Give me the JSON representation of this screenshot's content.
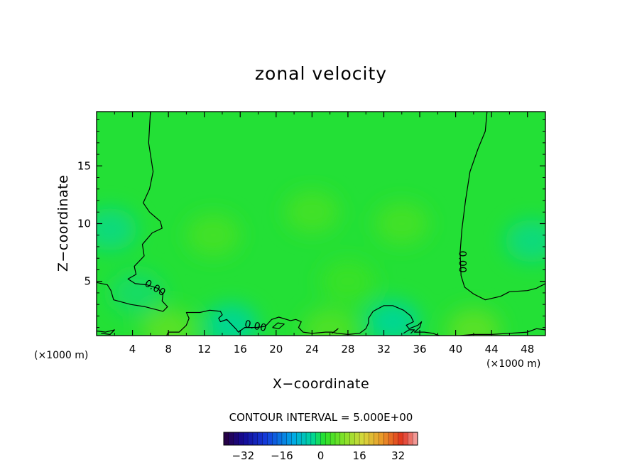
{
  "chart_data": {
    "type": "heatmap",
    "title": "zonal velocity",
    "xlabel": "X−coordinate",
    "ylabel": "Z−coordinate",
    "x_unit": "(×1000 m)",
    "y_unit": "(×1000 m)",
    "xlim": [
      0,
      50
    ],
    "ylim": [
      0.3,
      19.7
    ],
    "x_ticks": [
      4,
      8,
      12,
      16,
      20,
      24,
      28,
      32,
      36,
      40,
      44,
      48
    ],
    "y_ticks": [
      5,
      10,
      15
    ],
    "background_value": 1,
    "features": [
      {
        "x": 1.5,
        "z": 9.5,
        "value": -3
      },
      {
        "x": 48.5,
        "z": 8.5,
        "value": -3
      },
      {
        "x": 4.5,
        "z": 4.0,
        "value": -2
      },
      {
        "x": 24.0,
        "z": 11.0,
        "value": 3
      },
      {
        "x": 13.0,
        "z": 9.0,
        "value": 3
      },
      {
        "x": 34.0,
        "z": 10.0,
        "value": 3
      },
      {
        "x": 28.0,
        "z": 5.0,
        "value": 2
      },
      {
        "x": 15.0,
        "z": 1.2,
        "value": -4
      },
      {
        "x": 33.0,
        "z": 1.5,
        "value": -4
      },
      {
        "x": 26.0,
        "z": 0.8,
        "value": 4
      },
      {
        "x": 42.0,
        "z": 0.8,
        "value": 5
      },
      {
        "x": 8.0,
        "z": 0.8,
        "value": 5
      }
    ],
    "contours": [
      {
        "level": "0.00",
        "label_position": {
          "x": 6.5,
          "z": 4.4
        },
        "label_angle": 30,
        "points": [
          [
            6.0,
            19.7
          ],
          [
            5.8,
            17.0
          ],
          [
            6.3,
            14.5
          ],
          [
            5.9,
            13.0
          ],
          [
            5.2,
            11.8
          ],
          [
            5.9,
            11.0
          ],
          [
            7.1,
            10.2
          ],
          [
            7.3,
            9.6
          ],
          [
            6.2,
            9.2
          ],
          [
            5.1,
            8.2
          ],
          [
            5.3,
            7.2
          ],
          [
            4.2,
            6.3
          ],
          [
            4.4,
            5.6
          ],
          [
            3.5,
            5.2
          ],
          [
            4.3,
            4.8
          ],
          [
            5.6,
            4.7
          ],
          [
            6.8,
            4.4
          ],
          [
            7.4,
            3.9
          ],
          [
            7.3,
            3.3
          ],
          [
            7.9,
            2.8
          ],
          [
            7.4,
            2.4
          ],
          [
            5.4,
            2.8
          ],
          [
            3.8,
            3.0
          ],
          [
            1.9,
            3.4
          ],
          [
            1.6,
            4.2
          ],
          [
            1.2,
            4.7
          ],
          [
            0.0,
            4.9
          ]
        ]
      },
      {
        "level": "0.00",
        "label_position": {
          "x": 40.7,
          "z": 6.7
        },
        "label_angle": 90,
        "points": [
          [
            43.5,
            19.7
          ],
          [
            43.3,
            18.0
          ],
          [
            42.5,
            16.5
          ],
          [
            41.6,
            14.5
          ],
          [
            41.1,
            12.0
          ],
          [
            40.7,
            9.5
          ],
          [
            40.5,
            7.5
          ],
          [
            40.6,
            5.5
          ],
          [
            41.0,
            4.5
          ],
          [
            42.0,
            3.9
          ],
          [
            43.3,
            3.4
          ],
          [
            45.0,
            3.7
          ],
          [
            46.0,
            4.1
          ],
          [
            48.0,
            4.2
          ],
          [
            49.0,
            4.4
          ],
          [
            50.0,
            4.8
          ]
        ]
      },
      {
        "level": "0.00",
        "label_position": {
          "x": 17.7,
          "z": 1.1
        },
        "label_angle": 12,
        "points": [
          [
            7.8,
            0.3
          ],
          [
            8.0,
            0.6
          ],
          [
            9.2,
            0.6
          ],
          [
            10.0,
            1.2
          ],
          [
            10.3,
            1.8
          ],
          [
            10.0,
            2.3
          ],
          [
            11.5,
            2.3
          ],
          [
            12.6,
            2.5
          ],
          [
            13.8,
            2.4
          ],
          [
            14.0,
            2.1
          ],
          [
            13.6,
            1.8
          ],
          [
            13.8,
            1.5
          ],
          [
            14.5,
            1.7
          ],
          [
            15.0,
            1.3
          ],
          [
            15.5,
            0.9
          ],
          [
            15.8,
            0.6
          ],
          [
            16.5,
            1.0
          ],
          [
            17.8,
            1.0
          ],
          [
            18.8,
            1.1
          ],
          [
            19.5,
            1.7
          ],
          [
            20.3,
            1.9
          ],
          [
            21.6,
            1.6
          ],
          [
            22.2,
            1.7
          ],
          [
            22.8,
            1.5
          ],
          [
            22.5,
            1.0
          ],
          [
            23.0,
            0.6
          ],
          [
            24.0,
            0.5
          ],
          [
            25.5,
            0.6
          ],
          [
            26.2,
            0.6
          ],
          [
            26.8,
            0.5
          ],
          [
            28.0,
            0.4
          ],
          [
            29.3,
            0.5
          ],
          [
            30.0,
            0.9
          ],
          [
            30.3,
            1.4
          ],
          [
            30.3,
            1.8
          ],
          [
            30.8,
            2.4
          ],
          [
            32.0,
            2.9
          ],
          [
            33.0,
            2.9
          ],
          [
            34.2,
            2.5
          ],
          [
            35.0,
            2.0
          ],
          [
            35.3,
            1.5
          ],
          [
            34.5,
            1.2
          ],
          [
            34.8,
            0.9
          ],
          [
            35.8,
            1.2
          ],
          [
            36.2,
            1.5
          ],
          [
            36.0,
            1.0
          ],
          [
            35.4,
            0.6
          ],
          [
            36.5,
            0.6
          ],
          [
            37.5,
            0.5
          ],
          [
            37.8,
            0.4
          ],
          [
            38.2,
            0.3
          ]
        ]
      },
      {
        "level": "0.00",
        "label_position": null,
        "label_angle": 0,
        "points": [
          [
            19.6,
            1.0
          ],
          [
            20.2,
            1.4
          ],
          [
            20.9,
            1.3
          ],
          [
            20.3,
            0.9
          ],
          [
            19.6,
            1.0
          ]
        ]
      },
      {
        "level": "0.00",
        "label_position": null,
        "label_angle": 0,
        "points": [
          [
            26.2,
            0.5
          ],
          [
            26.6,
            0.7
          ],
          [
            26.9,
            0.9
          ],
          [
            26.4,
            0.6
          ]
        ]
      },
      {
        "level": "0.00",
        "label_position": null,
        "label_angle": 0,
        "points": [
          [
            34.2,
            0.5
          ],
          [
            34.8,
            0.8
          ],
          [
            35.4,
            0.8
          ],
          [
            35.0,
            0.5
          ]
        ]
      },
      {
        "level": "0.00",
        "label_position": null,
        "label_angle": 0,
        "points": [
          [
            0.0,
            0.7
          ],
          [
            1.0,
            0.6
          ],
          [
            2.0,
            0.8
          ],
          [
            1.5,
            0.4
          ],
          [
            0.5,
            0.5
          ]
        ]
      },
      {
        "level": "0.00",
        "label_position": null,
        "label_angle": 0,
        "points": [
          [
            40.5,
            0.3
          ],
          [
            42.0,
            0.4
          ],
          [
            44.0,
            0.4
          ],
          [
            46.0,
            0.5
          ],
          [
            48.0,
            0.6
          ],
          [
            49.0,
            0.9
          ],
          [
            50.0,
            0.8
          ]
        ]
      }
    ],
    "contour_interval_text": "CONTOUR INTERVAL = 5.000E+00",
    "colorbar": {
      "min": -40,
      "max": 40,
      "segments": 40,
      "tick_values": [
        -32,
        -16,
        0,
        16,
        32
      ],
      "tick_labels": [
        "−32",
        "−16",
        "0",
        "16",
        "32"
      ]
    }
  }
}
